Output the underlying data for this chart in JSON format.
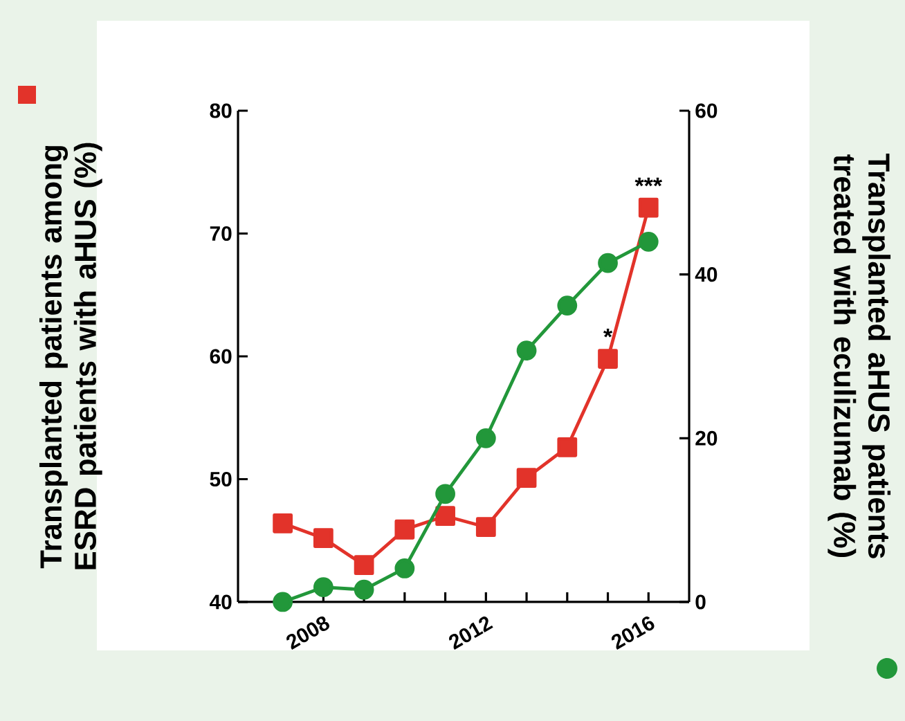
{
  "chart_data": {
    "type": "line",
    "ylabel": "Transplanted patients among ESRD patients with aHUS (%)",
    "y2label": "Transplanted aHUS patients treated with eculizumab (%)",
    "x": [
      2007,
      2008,
      2009,
      2010,
      2011,
      2012,
      2013,
      2014,
      2015,
      2016
    ],
    "xlim": [
      2005.9,
      2017
    ],
    "xticks": [
      {
        "value": 2007,
        "label": null
      },
      2008,
      {
        "value": 2009,
        "label": null
      },
      {
        "value": 2010,
        "label": null
      },
      {
        "value": 2011,
        "label": null
      },
      2012,
      {
        "value": 2013,
        "label": null
      },
      {
        "value": 2014,
        "label": null
      },
      {
        "value": 2015,
        "label": null
      },
      2016
    ],
    "ylim": [
      40,
      80
    ],
    "yticks": [
      40,
      50,
      60,
      70,
      80
    ],
    "y2lim": [
      0,
      60
    ],
    "y2ticks": [
      0,
      20,
      40,
      60
    ],
    "series": [
      {
        "color": "#e2332a",
        "marker": "square",
        "values": [
          46.4,
          45.2,
          43.0,
          45.9,
          47.0,
          46.1,
          50.1,
          52.6,
          59.8,
          72.1
        ]
      },
      {
        "color": "#22973a",
        "marker": "circle",
        "axis": "y2",
        "values": [
          0,
          1.8,
          1.5,
          4.1,
          13.2,
          20.0,
          30.7,
          36.2,
          41.4,
          44.0
        ]
      }
    ],
    "annotations": [
      {
        "text": "*",
        "x": 2015,
        "y": 59.8
      },
      {
        "text": "***",
        "x": 2016,
        "y": 72.1
      }
    ],
    "grid": false
  }
}
